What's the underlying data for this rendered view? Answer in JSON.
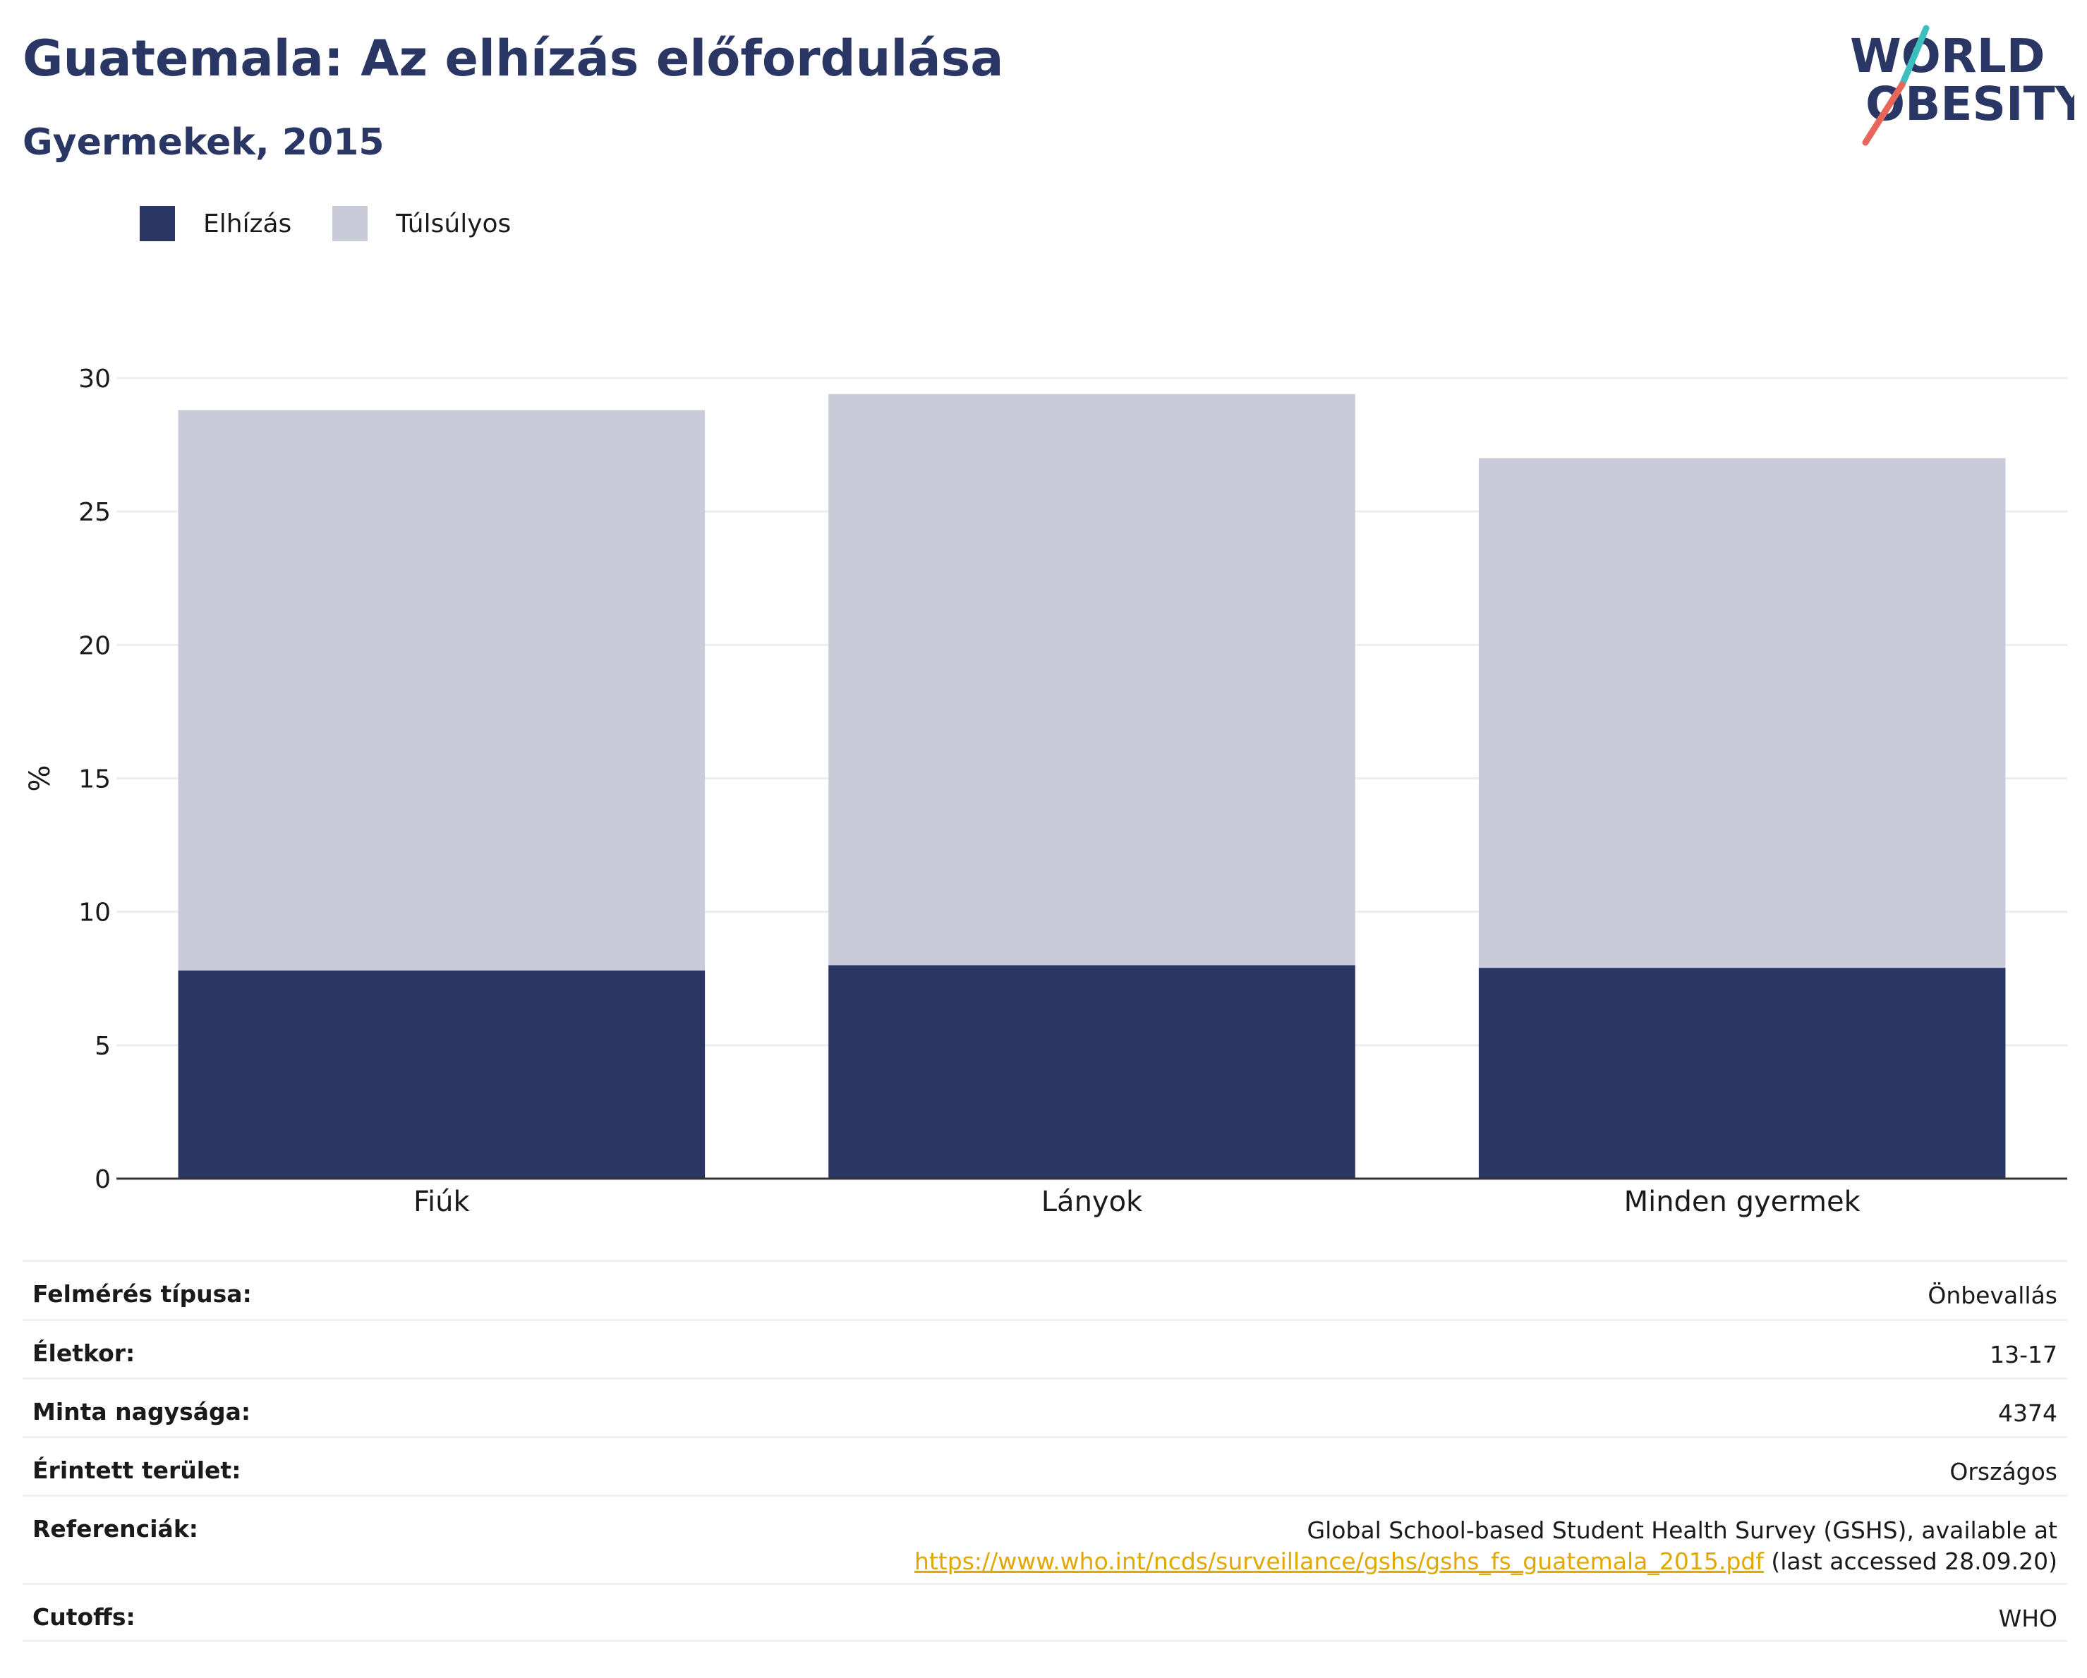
{
  "header": {
    "title": "Guatemala: Az elhízás előfordulása",
    "subtitle": "Gyermekek, 2015"
  },
  "logo": {
    "line1": "WORLD",
    "line2": "OBESITY",
    "colors": {
      "text": "#2a3664",
      "slash_top": "#3bbfbf",
      "slash_bottom": "#e8665a"
    }
  },
  "legend": [
    {
      "label": "Elhízás",
      "color": "#2a3664"
    },
    {
      "label": "Túlsúlyos",
      "color": "#c9ccd8"
    }
  ],
  "chart_data": {
    "type": "bar",
    "stacked": true,
    "categories": [
      "Fiúk",
      "Lányok",
      "Minden gyermek"
    ],
    "series": [
      {
        "name": "Elhízás",
        "values": [
          7.8,
          8.0,
          7.9
        ],
        "color": "#2a3664"
      },
      {
        "name": "Túlsúlyos",
        "values": [
          21.0,
          21.4,
          19.1
        ],
        "color": "#c9ccd8"
      }
    ],
    "totals": [
      28.8,
      29.4,
      27.0
    ],
    "ylabel": "%",
    "ylim": [
      0,
      30
    ],
    "yticks": [
      0,
      5,
      10,
      15,
      20,
      25,
      30
    ],
    "grid": true,
    "legend_position": "top-left"
  },
  "meta": [
    {
      "key": "Felmérés típusa:",
      "value": "Önbevallás"
    },
    {
      "key": "Életkor:",
      "value": "13-17"
    },
    {
      "key": "Minta nagysága:",
      "value": "4374"
    },
    {
      "key": "Érintett terület:",
      "value": "Országos"
    },
    {
      "key": "Referenciák:",
      "value_line1": "Global School-based Student Health Survey (GSHS), available at",
      "link": "https://www.who.int/ncds/surveillance/gshs/gshs_fs_guatemala_2015.pdf",
      "value_after": " (last accessed 28.09.20)"
    },
    {
      "key": "Cutoffs:",
      "value": "WHO"
    }
  ]
}
